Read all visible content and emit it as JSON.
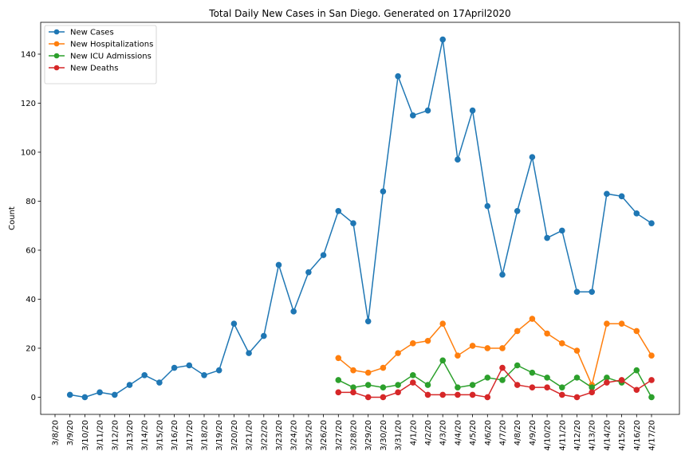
{
  "chart_data": {
    "type": "line",
    "title": "Total Daily New Cases in San Diego. Generated on 17April2020",
    "xlabel": "",
    "ylabel": "Count",
    "ylim": [
      -7,
      153
    ],
    "yticks": [
      0,
      20,
      40,
      60,
      80,
      100,
      120,
      140
    ],
    "grid": false,
    "legend": "top-left",
    "categories": [
      "3/8/20",
      "3/9/20",
      "3/10/20",
      "3/11/20",
      "3/12/20",
      "3/13/20",
      "3/14/20",
      "3/15/20",
      "3/16/20",
      "3/17/20",
      "3/18/20",
      "3/19/20",
      "3/20/20",
      "3/21/20",
      "3/22/20",
      "3/23/20",
      "3/24/20",
      "3/25/20",
      "3/26/20",
      "3/27/20",
      "3/28/20",
      "3/29/20",
      "3/30/20",
      "3/31/20",
      "4/1/20",
      "4/2/20",
      "4/3/20",
      "4/4/20",
      "4/5/20",
      "4/6/20",
      "4/7/20",
      "4/8/20",
      "4/9/20",
      "4/10/20",
      "4/11/20",
      "4/12/20",
      "4/13/20",
      "4/14/20",
      "4/15/20",
      "4/16/20",
      "4/17/20"
    ],
    "series": [
      {
        "name": "New Cases",
        "color": "#1f77b4",
        "values": [
          null,
          1,
          0,
          2,
          1,
          5,
          9,
          6,
          12,
          13,
          9,
          11,
          30,
          18,
          25,
          54,
          35,
          51,
          58,
          76,
          71,
          31,
          84,
          131,
          115,
          117,
          146,
          97,
          117,
          78,
          50,
          76,
          98,
          65,
          68,
          43,
          43,
          83,
          82,
          75,
          71
        ]
      },
      {
        "name": "New Hospitalizations",
        "color": "#ff7f0e",
        "values": [
          null,
          null,
          null,
          null,
          null,
          null,
          null,
          null,
          null,
          null,
          null,
          null,
          null,
          null,
          null,
          null,
          null,
          null,
          null,
          16,
          11,
          10,
          12,
          18,
          22,
          23,
          30,
          17,
          21,
          20,
          20,
          27,
          32,
          26,
          22,
          19,
          5,
          30,
          30,
          27,
          17
        ]
      },
      {
        "name": "New ICU Admissions",
        "color": "#2ca02c",
        "values": [
          null,
          null,
          null,
          null,
          null,
          null,
          null,
          null,
          null,
          null,
          null,
          null,
          null,
          null,
          null,
          null,
          null,
          null,
          null,
          7,
          4,
          5,
          4,
          5,
          9,
          5,
          15,
          4,
          5,
          8,
          7,
          13,
          10,
          8,
          4,
          8,
          4,
          8,
          6,
          11,
          0
        ]
      },
      {
        "name": "New Deaths",
        "color": "#d62728",
        "values": [
          null,
          null,
          null,
          null,
          null,
          null,
          null,
          null,
          null,
          null,
          null,
          null,
          null,
          null,
          null,
          null,
          null,
          null,
          null,
          2,
          2,
          0,
          0,
          2,
          6,
          1,
          1,
          1,
          1,
          0,
          12,
          5,
          4,
          4,
          1,
          0,
          2,
          6,
          7,
          3,
          7
        ]
      }
    ]
  }
}
